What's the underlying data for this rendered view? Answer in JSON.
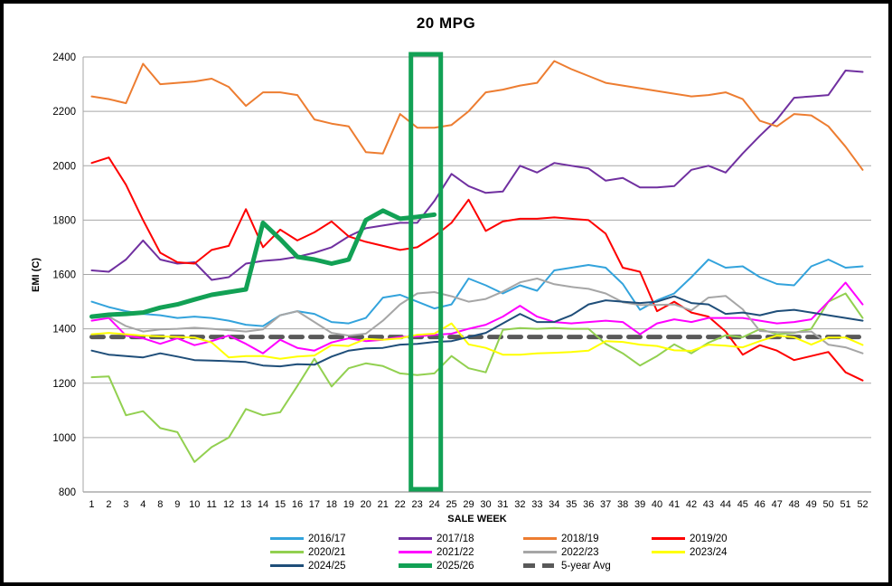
{
  "title": "20 MPG",
  "y_axis": {
    "label": "EMI (C)",
    "min": 800,
    "max": 2400,
    "step": 200
  },
  "x_axis": {
    "label": "SALE WEEK"
  },
  "highlight": {
    "from_week": 23,
    "to_week": 24,
    "color": "#12A155"
  },
  "colors": {
    "gridline": "#A6A6A6",
    "axis_line": "#808080",
    "frame_border": "#000000"
  },
  "chart_data": {
    "type": "line",
    "title": "20 MPG",
    "xlabel": "SALE WEEK",
    "ylabel": "EMI (C)",
    "ylim": [
      800,
      2400
    ],
    "grid": "horizontal",
    "legend_position": "bottom",
    "categories": [
      1,
      2,
      3,
      4,
      8,
      9,
      10,
      11,
      12,
      13,
      14,
      15,
      16,
      17,
      18,
      19,
      20,
      21,
      22,
      23,
      24,
      25,
      29,
      30,
      31,
      32,
      33,
      34,
      35,
      36,
      37,
      38,
      39,
      40,
      41,
      42,
      43,
      44,
      45,
      46,
      47,
      48,
      49,
      50,
      51,
      52
    ],
    "series": [
      {
        "name": "2016/17",
        "color": "#33A3DC",
        "width": 2,
        "values": [
          1500,
          1480,
          1465,
          1455,
          1450,
          1440,
          1445,
          1440,
          1430,
          1415,
          1410,
          1450,
          1465,
          1455,
          1425,
          1420,
          1440,
          1515,
          1525,
          1500,
          1475,
          1490,
          1585,
          1560,
          1530,
          1560,
          1540,
          1615,
          1625,
          1635,
          1625,
          1565,
          1470,
          1505,
          1530,
          1590,
          1655,
          1625,
          1630,
          1590,
          1565,
          1560,
          1630,
          1655,
          1625,
          1630
        ]
      },
      {
        "name": "2017/18",
        "color": "#7030A0",
        "width": 2,
        "values": [
          1615,
          1610,
          1655,
          1725,
          1655,
          1640,
          1645,
          1580,
          1590,
          1640,
          1650,
          1655,
          1665,
          1680,
          1700,
          1740,
          1770,
          1780,
          1790,
          1790,
          1870,
          1970,
          1925,
          1900,
          1905,
          2000,
          1975,
          2010,
          2000,
          1990,
          1945,
          1955,
          1920,
          1920,
          1925,
          1985,
          2000,
          1975,
          2045,
          2110,
          2170,
          2250,
          2255,
          2260,
          2350,
          2345
        ]
      },
      {
        "name": "2018/19",
        "color": "#ED7D31",
        "width": 2,
        "values": [
          2255,
          2245,
          2230,
          2375,
          2300,
          2305,
          2310,
          2320,
          2290,
          2220,
          2270,
          2270,
          2260,
          2170,
          2155,
          2145,
          2050,
          2045,
          2190,
          2140,
          2140,
          2150,
          2200,
          2270,
          2280,
          2295,
          2305,
          2385,
          2355,
          2330,
          2305,
          2295,
          2285,
          2275,
          2265,
          2255,
          2260,
          2270,
          2245,
          2165,
          2145,
          2190,
          2185,
          2145,
          2070,
          1985
        ]
      },
      {
        "name": "2019/20",
        "color": "#FE0000",
        "width": 2,
        "values": [
          2010,
          2030,
          1930,
          1800,
          1680,
          1645,
          1640,
          1690,
          1705,
          1840,
          1700,
          1765,
          1725,
          1755,
          1795,
          1740,
          1720,
          1705,
          1690,
          1700,
          1740,
          1790,
          1875,
          1760,
          1795,
          1805,
          1805,
          1810,
          1805,
          1800,
          1750,
          1625,
          1610,
          1465,
          1500,
          1460,
          1445,
          1390,
          1305,
          1340,
          1320,
          1285,
          1300,
          1315,
          1240,
          1210
        ]
      },
      {
        "name": "2020/21",
        "color": "#92D050",
        "width": 2,
        "values": [
          1222,
          1225,
          1082,
          1097,
          1035,
          1020,
          910,
          965,
          1000,
          1105,
          1082,
          1093,
          1190,
          1290,
          1188,
          1255,
          1273,
          1263,
          1236,
          1230,
          1236,
          1300,
          1255,
          1240,
          1396,
          1403,
          1400,
          1403,
          1400,
          1400,
          1345,
          1310,
          1265,
          1300,
          1343,
          1310,
          1349,
          1376,
          1369,
          1399,
          1380,
          1385,
          1400,
          1500,
          1530,
          1440
        ]
      },
      {
        "name": "2021/22",
        "color": "#FF00FF",
        "width": 2,
        "values": [
          1430,
          1440,
          1375,
          1365,
          1345,
          1365,
          1340,
          1355,
          1375,
          1345,
          1310,
          1360,
          1330,
          1320,
          1350,
          1365,
          1355,
          1360,
          1370,
          1372,
          1378,
          1382,
          1400,
          1415,
          1445,
          1485,
          1445,
          1425,
          1420,
          1425,
          1430,
          1425,
          1380,
          1420,
          1435,
          1425,
          1440,
          1440,
          1440,
          1430,
          1420,
          1425,
          1435,
          1500,
          1570,
          1490
        ]
      },
      {
        "name": "2022/23",
        "color": "#A6A6A6",
        "width": 2,
        "values": [
          1440,
          1445,
          1410,
          1390,
          1398,
          1400,
          1404,
          1400,
          1395,
          1390,
          1398,
          1450,
          1465,
          1425,
          1385,
          1375,
          1382,
          1430,
          1490,
          1530,
          1535,
          1520,
          1500,
          1510,
          1537,
          1571,
          1585,
          1564,
          1554,
          1547,
          1530,
          1498,
          1488,
          1488,
          1490,
          1468,
          1515,
          1521,
          1472,
          1392,
          1388,
          1387,
          1390,
          1342,
          1332,
          1310
        ]
      },
      {
        "name": "2023/24",
        "color": "#FFFF00",
        "width": 2,
        "values": [
          1380,
          1385,
          1380,
          1375,
          1372,
          1370,
          1368,
          1350,
          1295,
          1300,
          1300,
          1290,
          1298,
          1302,
          1340,
          1337,
          1363,
          1360,
          1365,
          1378,
          1382,
          1420,
          1343,
          1330,
          1305,
          1305,
          1310,
          1312,
          1315,
          1320,
          1355,
          1352,
          1342,
          1337,
          1321,
          1319,
          1342,
          1338,
          1332,
          1355,
          1375,
          1369,
          1342,
          1368,
          1368,
          1341
        ]
      },
      {
        "name": "2024/25",
        "color": "#1F4E79",
        "width": 2,
        "values": [
          1320,
          1305,
          1300,
          1295,
          1310,
          1298,
          1285,
          1283,
          1281,
          1278,
          1265,
          1262,
          1270,
          1268,
          1298,
          1320,
          1328,
          1330,
          1342,
          1345,
          1352,
          1355,
          1370,
          1385,
          1420,
          1455,
          1425,
          1425,
          1450,
          1490,
          1505,
          1500,
          1495,
          1500,
          1520,
          1495,
          1490,
          1455,
          1460,
          1450,
          1465,
          1470,
          1460,
          1450,
          1440,
          1430
        ]
      },
      {
        "name": "2025/26",
        "color": "#12A155",
        "width": 5,
        "values": [
          1445,
          1452,
          1455,
          1460,
          1478,
          1490,
          1508,
          1525,
          1535,
          1545,
          1790,
          1730,
          1665,
          1655,
          1640,
          1655,
          1800,
          1835,
          1805,
          1812,
          1820,
          null,
          null,
          null,
          null,
          null,
          null,
          null,
          null,
          null,
          null,
          null,
          null,
          null,
          null,
          null,
          null,
          null,
          null,
          null,
          null,
          null,
          null,
          null,
          null,
          null
        ]
      },
      {
        "name": "5-year Avg",
        "color": "#595959",
        "width": 5,
        "dash": "13 9",
        "values": [
          1370,
          1370,
          1370,
          1370,
          1370,
          1370,
          1370,
          1370,
          1370,
          1370,
          1370,
          1370,
          1370,
          1370,
          1370,
          1370,
          1370,
          1370,
          1370,
          1370,
          1370,
          1370,
          1370,
          1370,
          1370,
          1370,
          1370,
          1370,
          1370,
          1370,
          1370,
          1370,
          1370,
          1370,
          1370,
          1370,
          1370,
          1370,
          1370,
          1370,
          1370,
          1370,
          1370,
          1370,
          1370,
          1370
        ]
      }
    ]
  }
}
